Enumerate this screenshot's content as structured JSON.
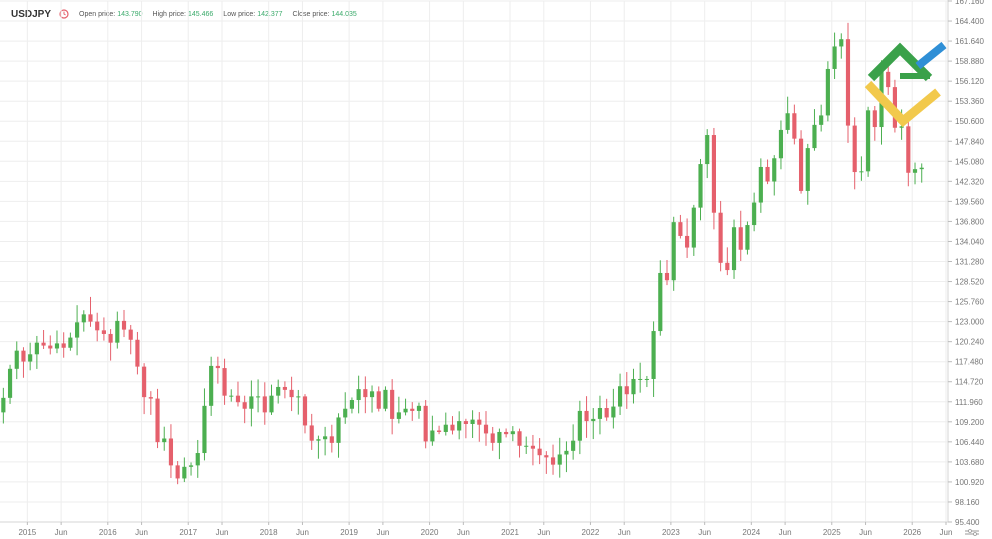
{
  "header": {
    "symbol": "USDJPY",
    "open_label": "Open price:",
    "open_value": "143.790",
    "high_label": "High price:",
    "high_value": "145.466",
    "low_label": "Low price:",
    "low_value": "142.377",
    "close_label": "Close price:",
    "close_value": "144.035"
  },
  "colors": {
    "up": "#4caf50",
    "down": "#e5606c",
    "grid": "#eeeeee",
    "logo_green": "#3aa14a",
    "logo_yellow": "#f2c94c",
    "logo_blue": "#2f8fd6"
  },
  "chart_data": {
    "type": "candlestick",
    "title": "USDJPY",
    "timeframe": "monthly",
    "ylim": [
      95.4,
      167.16
    ],
    "y_ticks": [
      "95.400",
      "98.160",
      "100.920",
      "103.680",
      "106.440",
      "109.200",
      "111.960",
      "114.720",
      "117.480",
      "120.240",
      "123.000",
      "125.760",
      "128.520",
      "131.280",
      "134.040",
      "136.800",
      "139.560",
      "142.320",
      "145.080",
      "147.840",
      "150.600",
      "153.360",
      "156.120",
      "158.880",
      "161.640",
      "164.400",
      "167.160"
    ],
    "x_ticks": [
      {
        "label": "2015",
        "t": 2015.0
      },
      {
        "label": "Jun",
        "t": 2015.42
      },
      {
        "label": "2016",
        "t": 2016.0
      },
      {
        "label": "Jun",
        "t": 2016.42
      },
      {
        "label": "2017",
        "t": 2017.0
      },
      {
        "label": "Jun",
        "t": 2017.42
      },
      {
        "label": "2018",
        "t": 2018.0
      },
      {
        "label": "Jun",
        "t": 2018.42
      },
      {
        "label": "2019",
        "t": 2019.0
      },
      {
        "label": "Jun",
        "t": 2019.42
      },
      {
        "label": "2020",
        "t": 2020.0
      },
      {
        "label": "Jun",
        "t": 2020.42
      },
      {
        "label": "2021",
        "t": 2021.0
      },
      {
        "label": "Jun",
        "t": 2021.42
      },
      {
        "label": "2022",
        "t": 2022.0
      },
      {
        "label": "Jun",
        "t": 2022.42
      },
      {
        "label": "2023",
        "t": 2023.0
      },
      {
        "label": "Jun",
        "t": 2023.42
      },
      {
        "label": "2024",
        "t": 2024.0
      },
      {
        "label": "Jun",
        "t": 2024.42
      },
      {
        "label": "2025",
        "t": 2025.0
      },
      {
        "label": "Jun",
        "t": 2025.42
      },
      {
        "label": "2026",
        "t": 2026.0
      },
      {
        "label": "Jun",
        "t": 2026.42
      }
    ],
    "x_start": 2014.66,
    "closes": [
      112.5,
      116.5,
      119.0,
      117.5,
      118.5,
      120.1,
      119.7,
      119.3,
      120.0,
      119.4,
      120.8,
      122.9,
      124.0,
      123.0,
      121.8,
      121.3,
      120.1,
      123.1,
      121.9,
      120.5,
      116.8,
      112.6,
      112.4,
      106.4,
      106.9,
      103.2,
      101.4,
      103.0,
      103.2,
      104.9,
      111.4,
      116.9,
      116.6,
      112.8,
      112.8,
      111.9,
      111.0,
      112.7,
      112.7,
      110.5,
      112.8,
      114.0,
      113.6,
      112.6,
      112.7,
      108.7,
      106.6,
      106.8,
      107.2,
      106.3,
      109.8,
      111.0,
      112.2,
      113.7,
      112.6,
      113.4,
      111.0,
      113.6,
      109.6,
      110.5,
      111.0,
      110.7,
      111.4,
      106.5,
      108.0,
      107.8,
      108.8,
      108.0,
      109.3,
      108.9,
      109.5,
      108.8,
      107.6,
      106.3,
      107.8,
      107.5,
      107.9,
      105.9,
      105.9,
      105.5,
      104.6,
      104.3,
      103.3,
      104.7,
      105.2,
      106.6,
      110.7,
      109.3,
      109.6,
      111.1,
      109.8,
      111.3,
      114.1,
      113.0,
      115.1,
      115.1,
      115.1,
      121.7,
      129.7,
      128.7,
      136.7,
      134.8,
      133.2,
      138.7,
      144.7,
      148.7,
      138.0,
      131.1,
      130.1,
      136.0,
      132.9,
      136.3,
      139.4,
      144.3,
      142.3,
      145.5,
      149.4,
      151.7,
      148.2,
      141.0,
      146.9,
      150.1,
      151.4,
      157.8,
      160.9,
      161.9,
      150.0,
      143.6,
      143.7,
      152.1,
      149.8,
      157.4,
      155.3,
      149.7,
      149.9,
      143.5,
      144.0,
      144.2
    ]
  }
}
